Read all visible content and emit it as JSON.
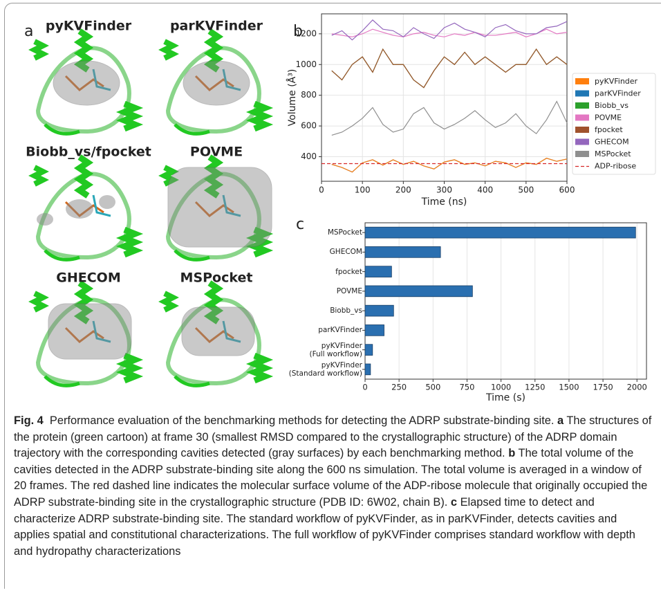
{
  "panel_a": {
    "label": "a",
    "titles": [
      "pyKVFinder",
      "parKVFinder",
      "Biobb_vs/fpocket",
      "POVME",
      "GHECOM",
      "MSPocket"
    ]
  },
  "chart_data": [
    {
      "type": "line",
      "panel": "b",
      "x": [
        25,
        50,
        75,
        100,
        125,
        150,
        175,
        200,
        225,
        250,
        275,
        300,
        325,
        350,
        375,
        400,
        425,
        450,
        475,
        500,
        525,
        550,
        575,
        600
      ],
      "series": [
        {
          "name": "pyKVFinder",
          "color": "#ff7f0e",
          "values": [
            350,
            330,
            300,
            360,
            380,
            345,
            380,
            350,
            370,
            340,
            320,
            365,
            380,
            350,
            360,
            340,
            370,
            360,
            330,
            360,
            350,
            390,
            370,
            385
          ]
        },
        {
          "name": "parKVFinder",
          "color": "#1f77b4",
          "values": [
            350,
            330,
            300,
            360,
            380,
            345,
            380,
            350,
            370,
            340,
            320,
            365,
            380,
            350,
            360,
            340,
            370,
            360,
            330,
            360,
            350,
            390,
            370,
            385
          ]
        },
        {
          "name": "Biobb_vs",
          "color": "#2ca02c",
          "values": [
            960,
            900,
            1000,
            1050,
            950,
            1100,
            1000,
            1000,
            900,
            850,
            960,
            1050,
            1000,
            1080,
            1000,
            1050,
            1000,
            950,
            1000,
            1000,
            1100,
            1000,
            1050,
            1000
          ]
        },
        {
          "name": "POVME",
          "color": "#e377c2",
          "values": [
            1200,
            1190,
            1180,
            1200,
            1230,
            1210,
            1190,
            1180,
            1200,
            1210,
            1190,
            1180,
            1200,
            1190,
            1210,
            1190,
            1190,
            1200,
            1210,
            1180,
            1200,
            1230,
            1200,
            1210
          ]
        },
        {
          "name": "fpocket",
          "color": "#a0522d",
          "values": [
            960,
            900,
            1000,
            1050,
            950,
            1100,
            1000,
            1000,
            900,
            850,
            960,
            1050,
            1000,
            1080,
            1000,
            1050,
            1000,
            950,
            1000,
            1000,
            1100,
            1000,
            1050,
            1000
          ]
        },
        {
          "name": "GHECOM",
          "color": "#9467bd",
          "values": [
            1190,
            1220,
            1160,
            1220,
            1290,
            1230,
            1220,
            1180,
            1240,
            1200,
            1170,
            1240,
            1270,
            1230,
            1210,
            1180,
            1240,
            1260,
            1220,
            1200,
            1200,
            1240,
            1250,
            1280
          ]
        },
        {
          "name": "MSPocket",
          "color": "#8f8f8f",
          "values": [
            540,
            560,
            600,
            650,
            720,
            610,
            560,
            580,
            680,
            720,
            620,
            580,
            610,
            650,
            700,
            640,
            590,
            620,
            680,
            600,
            550,
            640,
            760,
            620
          ]
        }
      ],
      "reference_lines": [
        {
          "name": "ADP-ribose",
          "value": 355,
          "color": "#d62728"
        }
      ],
      "xlabel": "Time (ns)",
      "ylabel": "Volume (Å³)",
      "xlim": [
        0,
        600
      ],
      "xticks": [
        0,
        100,
        200,
        300,
        400,
        500,
        600
      ],
      "ylim": [
        240,
        1330
      ],
      "yticks": [
        400,
        600,
        800,
        1000,
        1200
      ],
      "grid": true,
      "legend": "outside right"
    },
    {
      "type": "hbar",
      "panel": "c",
      "categories": [
        "MSPocket",
        "GHECOM",
        "fpocket",
        "POVME",
        "Biobb_vs",
        "parKVFinder",
        "pyKVFinder\n(Full workflow)",
        "pyKVFinder\n(Standard workflow)"
      ],
      "values": [
        1990,
        555,
        195,
        790,
        210,
        140,
        55,
        40
      ],
      "color": "#2a6fb0",
      "xlabel": "Time (s)",
      "xlim": [
        0,
        2070
      ],
      "xticks": [
        0,
        250,
        500,
        750,
        1000,
        1250,
        1500,
        1750,
        2000
      ],
      "grid": true
    }
  ],
  "caption": {
    "label": "Fig. 4",
    "intro": "Performance evaluation of the benchmarking methods for detecting the ADRP substrate-binding site.",
    "items": [
      {
        "label": "a",
        "text": "The structures of the protein (green cartoon) at frame 30 (smallest RMSD compared to the crystallographic structure) of the ADRP domain trajectory with the corresponding cavities detected (gray surfaces) by each benchmarking method."
      },
      {
        "label": "b",
        "text": "The total volume of the cavities detected in the ADRP substrate-binding site along the 600 ns simulation. The total volume is averaged in a window of 20 frames. The red dashed line indicates the molecular surface volume of the ADP-ribose molecule that originally occupied the ADRP substrate-binding site in the crystallographic structure (PDB ID: 6W02, chain B)."
      },
      {
        "label": "c",
        "text": "Elapsed time to detect and characterize ADRP substrate-binding site. The standard workflow of pyKVFinder, as in parKVFinder, detects cavities and applies spatial and constitutional characterizations. The full workflow of pyKVFinder comprises standard workflow with depth and hydropathy characterizations"
      }
    ]
  }
}
